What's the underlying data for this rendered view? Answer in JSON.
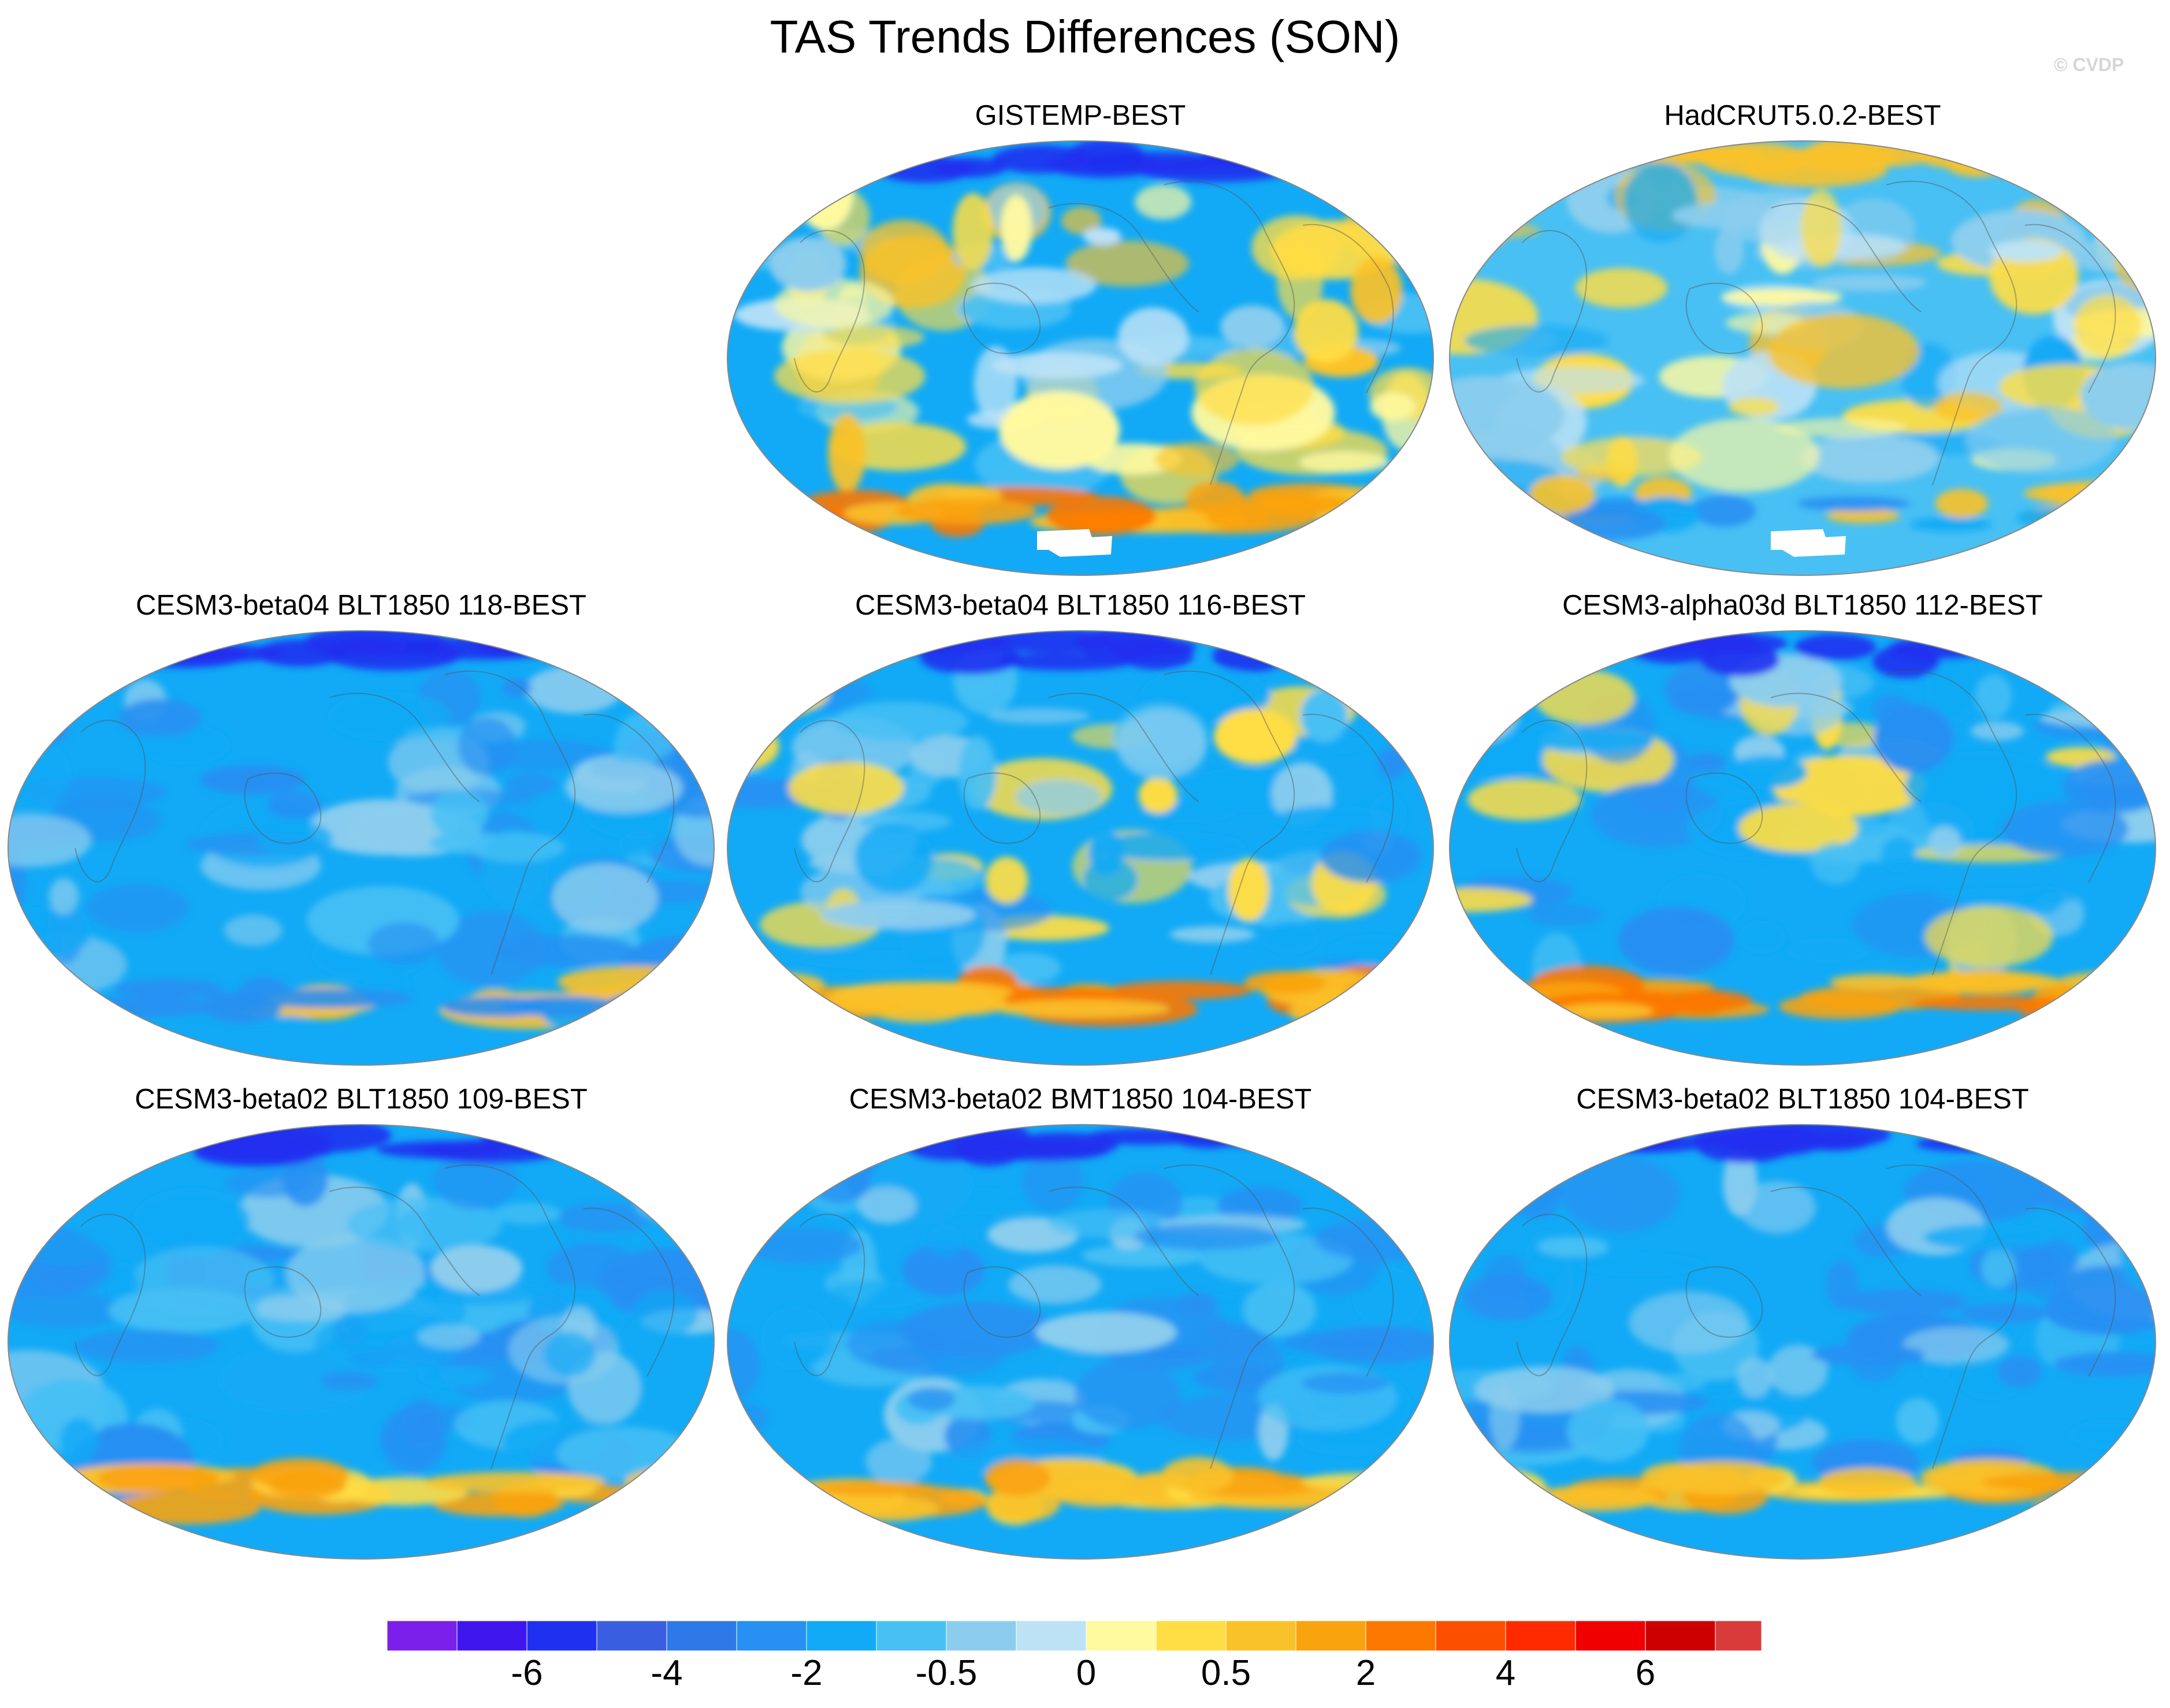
{
  "title": "TAS Trends Differences (SON)",
  "copyright": "© CVDP",
  "panels": [
    {
      "title": "GISTEMP-BEST",
      "pattern": "mixed-warm",
      "missing_antarctic": true
    },
    {
      "title": "HadCRUT5.0.2-BEST",
      "pattern": "mixed-cool",
      "missing_antarctic": true
    },
    {
      "title": "CESM3-beta04 BLT1850 118-BEST",
      "pattern": "cool",
      "missing_antarctic": false
    },
    {
      "title": "CESM3-beta04 BLT1850 116-BEST",
      "pattern": "cool-southern-warm",
      "missing_antarctic": false
    },
    {
      "title": "CESM3-alpha03d BLT1850 112-BEST",
      "pattern": "cool-southern-warm",
      "missing_antarctic": false
    },
    {
      "title": "CESM3-beta02 BLT1850 109-BEST",
      "pattern": "cool-southern-band",
      "missing_antarctic": false
    },
    {
      "title": "CESM3-beta02 BMT1850 104-BEST",
      "pattern": "cool-southern-band",
      "missing_antarctic": false
    },
    {
      "title": "CESM3-beta02 BLT1850 104-BEST",
      "pattern": "cool-southern-band",
      "missing_antarctic": false
    }
  ],
  "colorbar": {
    "colors": [
      "#7a20ea",
      "#3f16ee",
      "#2030f0",
      "#3a5ee0",
      "#2f78e8",
      "#2790f2",
      "#12aaf6",
      "#48c0f4",
      "#8ccdee",
      "#bde2f6",
      "#fff9a0",
      "#ffdd44",
      "#fac22a",
      "#f9a30f",
      "#fc7800",
      "#fd4f00",
      "#ff2a00",
      "#f00000",
      "#cc0000",
      "#d93a3a",
      "#fab5b5"
    ],
    "labels": [
      {
        "text": "-6",
        "after_box": 2
      },
      {
        "text": "-4",
        "after_box": 4
      },
      {
        "text": "-2",
        "after_box": 6
      },
      {
        "text": "-0.5",
        "after_box": 8
      },
      {
        "text": "0",
        "after_box": 10
      },
      {
        "text": "0.5",
        "after_box": 12
      },
      {
        "text": "2",
        "after_box": 14
      },
      {
        "text": "4",
        "after_box": 16
      },
      {
        "text": "6",
        "after_box": 18
      }
    ]
  }
}
